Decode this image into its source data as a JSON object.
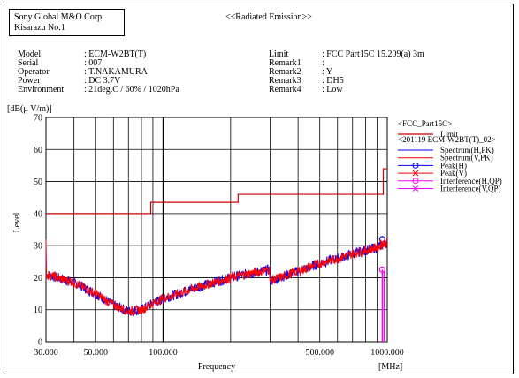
{
  "header": {
    "company": "Sony Global M&O Corp",
    "site": "Kisarazu No.1",
    "test_title": "<<Radiated Emission>>"
  },
  "info_left": [
    {
      "label": "Model",
      "value": ": ECM-W2BT(T)"
    },
    {
      "label": "Serial",
      "value": ": 007"
    },
    {
      "label": "Operator",
      "value": ": T.NAKAMURA"
    },
    {
      "label": "Power",
      "value": ": DC 3.7V"
    },
    {
      "label": "Environment",
      "value": ": 21deg.C / 60% / 1020hPa"
    }
  ],
  "info_right": [
    {
      "label": "Limit",
      "value": ": FCC Part15C 15.209(a) 3m"
    },
    {
      "label": "Remark1",
      "value": ":"
    },
    {
      "label": "Remark2",
      "value": ": Y"
    },
    {
      "label": "Remark3",
      "value": ": DH5"
    },
    {
      "label": "Remark4",
      "value": ": Low"
    }
  ],
  "legend": {
    "group1": "<FCC_Part15C>",
    "group2": "<201119 ECM-W2BT(T)_02>",
    "items": [
      "Limit",
      "Spectrum(H,PK)",
      "Spectrum(V,PK)",
      "Peak(H)",
      "Peak(V)",
      "Interference(H,QP)",
      "Interference(V,QP)"
    ]
  },
  "colors": {
    "limit": "#cc0000",
    "spectrum_h": "#0000ff",
    "spectrum_v": "#ff0000",
    "peak_h": "#0000ff",
    "peak_v": "#ff0000",
    "interference_h": "#ff00ff",
    "interference_v": "#ff00ff"
  },
  "chart_data": {
    "type": "line",
    "xscale": "log",
    "xlim": [
      30,
      1000
    ],
    "ylim": [
      0,
      70
    ],
    "ylabel": "Level",
    "yunit": "[dB(μ V/m)]",
    "xlabel": "Frequency",
    "xunit": "[MHz]",
    "x_tick_labels": [
      "30.000",
      "50.000",
      "100.000",
      "500.000",
      "1000.000"
    ],
    "x_tick_values": [
      30,
      50,
      100,
      500,
      1000
    ],
    "y_ticks": [
      0,
      10,
      20,
      30,
      40,
      50,
      60,
      70
    ],
    "limit": [
      {
        "x": [
          30,
          88
        ],
        "y": [
          40,
          40
        ]
      },
      {
        "x": [
          88,
          216
        ],
        "y": [
          43.5,
          43.5
        ]
      },
      {
        "x": [
          216,
          960
        ],
        "y": [
          46,
          46
        ]
      },
      {
        "x": [
          960,
          1000
        ],
        "y": [
          54,
          54
        ]
      }
    ],
    "spectrum": {
      "x": [
        30,
        40,
        50,
        60,
        70,
        80,
        90,
        100,
        150,
        200,
        250,
        299,
        300,
        400,
        500,
        600,
        700,
        800,
        900,
        1000
      ],
      "y": [
        21,
        18.5,
        15,
        11.5,
        9.5,
        10,
        12,
        13.5,
        17.5,
        20,
        21.5,
        22.5,
        19,
        22,
        24.5,
        26,
        27.5,
        28.5,
        29.5,
        31
      ]
    },
    "peak_h": [
      {
        "x": 950,
        "y": 32
      }
    ],
    "peak_v": [
      {
        "x": 950,
        "y": 31
      }
    ],
    "interference_h": [
      {
        "x": 950,
        "y": 22.5
      }
    ],
    "interference_v": [
      {
        "x": 950,
        "y": 22
      }
    ]
  }
}
